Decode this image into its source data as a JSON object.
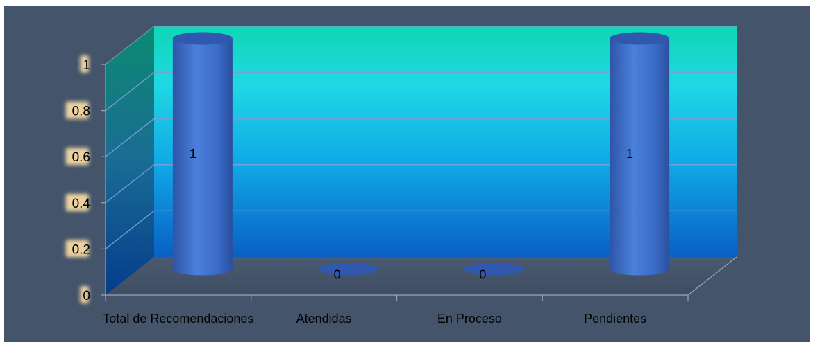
{
  "chart_data": {
    "type": "bar",
    "categories": [
      "Total de Recomendaciones",
      "Atendidas",
      "En Proceso",
      "Pendientes"
    ],
    "values": [
      1,
      0,
      0,
      1
    ],
    "data_labels": [
      "1",
      "0",
      "0",
      "1"
    ],
    "ylim": [
      0,
      1
    ],
    "yticks": [
      0,
      0.2,
      0.4,
      0.6,
      0.8,
      1
    ],
    "ytick_labels": [
      "0",
      "0.2",
      "0.4",
      "0.6",
      "0.8",
      "1"
    ],
    "grid": true,
    "legend": "none",
    "title": "",
    "xlabel": "",
    "ylabel": ""
  },
  "colors": {
    "background": "#44546a",
    "bar": "#3a6cc8",
    "wall_top": "#12d4b8",
    "wall_mid": "#1fd4e6",
    "wall_bottom": "#0b67c9",
    "grid": "#7aa0d8",
    "label_backdrop": "#f6d9a3"
  }
}
